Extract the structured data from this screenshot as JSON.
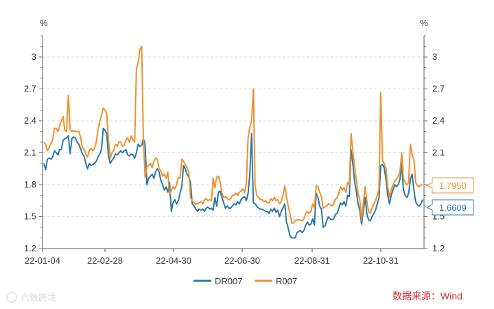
{
  "watermark": "六数跨境",
  "source": "数据来源：Wind",
  "chart_data": {
    "type": "line",
    "left_unit": "%",
    "right_unit": "%",
    "y_ticks": [
      "1.2",
      "1.5",
      "1.8",
      "2.1",
      "2.4",
      "2.7",
      "3"
    ],
    "right_y_ticks": [
      "1.2",
      "1.5",
      "1.8",
      "2.1",
      "2.4",
      "2.7",
      "3"
    ],
    "ylim": [
      1.2,
      3.2
    ],
    "x_ticks": [
      "22-01-04",
      "22-02-28",
      "22-04-30",
      "22-06-30",
      "22-08-31",
      "22-10-31"
    ],
    "grid": "horizontal dashed",
    "legend_position": "bottom",
    "colors": {
      "DR007": "#2b77a7",
      "R007": "#f0902b"
    },
    "series": [
      {
        "name": "DR007",
        "color": "#2b77a7",
        "last_label": "1.6609",
        "values": [
          2.0,
          1.94,
          2.04,
          2.05,
          2.04,
          2.06,
          2.12,
          2.1,
          2.08,
          2.13,
          2.13,
          2.22,
          2.23,
          2.24,
          2.26,
          2.09,
          2.23,
          2.25,
          2.24,
          2.2,
          2.18,
          2.14,
          2.09,
          2.07,
          2.0,
          1.95,
          2.0,
          1.98,
          1.99,
          2.0,
          2.02,
          2.06,
          2.09,
          2.13,
          2.33,
          2.31,
          2.28,
          2.07,
          2.0,
          2.03,
          2.05,
          2.09,
          2.08,
          2.1,
          2.12,
          2.1,
          2.12,
          2.13,
          2.08,
          2.07,
          2.09,
          2.08,
          2.05,
          2.1,
          2.18,
          2.16,
          2.17,
          2.23,
          2.18,
          1.8,
          1.86,
          1.88,
          1.9,
          1.86,
          1.92,
          1.95,
          1.92,
          1.84,
          1.8,
          1.75,
          1.78,
          1.73,
          1.82,
          1.55,
          1.63,
          1.66,
          1.62,
          1.65,
          1.72,
          1.78,
          1.98,
          1.95,
          1.9,
          1.87,
          1.82,
          1.62,
          1.6,
          1.57,
          1.55,
          1.57,
          1.56,
          1.57,
          1.55,
          1.58,
          1.59,
          1.57,
          1.58,
          1.56,
          1.68,
          1.6,
          1.73,
          1.74,
          1.68,
          1.63,
          1.58,
          1.6,
          1.58,
          1.58,
          1.6,
          1.62,
          1.61,
          1.64,
          1.62,
          1.66,
          1.68,
          1.69,
          1.65,
          1.72,
          1.91,
          2.28,
          1.63,
          1.62,
          1.6,
          1.58,
          1.57,
          1.57,
          1.56,
          1.55,
          1.55,
          1.53,
          1.57,
          1.55,
          1.58,
          1.54,
          1.56,
          1.5,
          1.55,
          1.58,
          1.62,
          1.45,
          1.39,
          1.32,
          1.3,
          1.3,
          1.3,
          1.35,
          1.36,
          1.37,
          1.35,
          1.37,
          1.42,
          1.45,
          1.42,
          1.43,
          1.48,
          1.42,
          1.72,
          1.68,
          1.6,
          1.57,
          1.4,
          1.41,
          1.46,
          1.5,
          1.48,
          1.47,
          1.48,
          1.52,
          1.53,
          1.58,
          1.63,
          1.61,
          1.64,
          1.6,
          1.7,
          1.69,
          2.13,
          2.0,
          1.83,
          1.74,
          1.62,
          1.56,
          1.43,
          1.55,
          1.68,
          1.53,
          1.47,
          1.46,
          1.5,
          1.53,
          1.56,
          1.62,
          1.68,
          1.98,
          1.99,
          1.96,
          1.85,
          1.7,
          1.62,
          1.7,
          1.75,
          1.8,
          1.78,
          1.8,
          1.85,
          2.0,
          1.75,
          1.7,
          1.68,
          1.72,
          1.85,
          1.9,
          1.75,
          1.64,
          1.61,
          1.6,
          1.62,
          1.6609
        ]
      },
      {
        "name": "R007",
        "color": "#f0902b",
        "last_label": "1.7950",
        "values": [
          2.2,
          2.18,
          2.12,
          2.15,
          2.19,
          2.22,
          2.33,
          2.33,
          2.3,
          2.35,
          2.4,
          2.44,
          2.31,
          2.3,
          2.64,
          2.32,
          2.3,
          2.31,
          2.3,
          2.3,
          2.3,
          2.25,
          2.15,
          2.13,
          2.09,
          2.06,
          2.12,
          2.14,
          2.12,
          2.14,
          2.2,
          2.32,
          2.4,
          2.45,
          2.52,
          2.5,
          2.47,
          2.22,
          2.05,
          2.1,
          2.12,
          2.18,
          2.16,
          2.2,
          2.2,
          2.16,
          2.17,
          2.22,
          2.24,
          2.2,
          2.26,
          2.22,
          2.2,
          2.88,
          2.95,
          3.07,
          3.1,
          2.22,
          1.87,
          1.97,
          1.98,
          2.0,
          1.96,
          2.02,
          2.05,
          2.04,
          1.95,
          1.93,
          1.88,
          1.9,
          1.86,
          1.92,
          1.7,
          1.75,
          1.78,
          1.76,
          1.8,
          1.87,
          1.86,
          2.04,
          2.02,
          1.99,
          1.96,
          1.92,
          1.68,
          1.65,
          1.63,
          1.62,
          1.62,
          1.63,
          1.64,
          1.62,
          1.66,
          1.67,
          1.65,
          1.66,
          1.65,
          1.86,
          1.77,
          1.87,
          1.88,
          1.82,
          1.72,
          1.68,
          1.69,
          1.67,
          1.66,
          1.67,
          1.7,
          1.7,
          1.72,
          1.7,
          1.73,
          1.74,
          1.76,
          1.73,
          1.81,
          2.24,
          2.34,
          2.4,
          2.7,
          1.79,
          1.7,
          1.68,
          1.66,
          1.66,
          1.64,
          1.65,
          1.63,
          1.63,
          1.67,
          1.65,
          1.68,
          1.65,
          1.66,
          1.62,
          1.64,
          1.7,
          1.79,
          1.68,
          1.6,
          1.53,
          1.44,
          1.44,
          1.46,
          1.47,
          1.47,
          1.47,
          1.46,
          1.48,
          1.53,
          1.55,
          1.53,
          1.55,
          1.62,
          1.58,
          1.79,
          1.78,
          1.73,
          1.69,
          1.58,
          1.59,
          1.6,
          1.62,
          1.61,
          1.6,
          1.62,
          1.66,
          1.68,
          1.72,
          1.78,
          1.75,
          1.77,
          1.73,
          1.82,
          1.8,
          2.28,
          2.12,
          1.97,
          1.85,
          1.72,
          1.66,
          1.47,
          1.62,
          1.78,
          1.65,
          1.55,
          1.53,
          1.58,
          1.62,
          1.65,
          1.7,
          1.76,
          2.67,
          2.03,
          2.0,
          1.95,
          1.78,
          1.68,
          1.75,
          1.8,
          1.83,
          1.85,
          1.88,
          1.92,
          2.1,
          1.86,
          1.82,
          1.8,
          1.82,
          2.18,
          2.08,
          2.04,
          1.82,
          1.79,
          1.78,
          1.8,
          1.795
        ]
      }
    ]
  }
}
